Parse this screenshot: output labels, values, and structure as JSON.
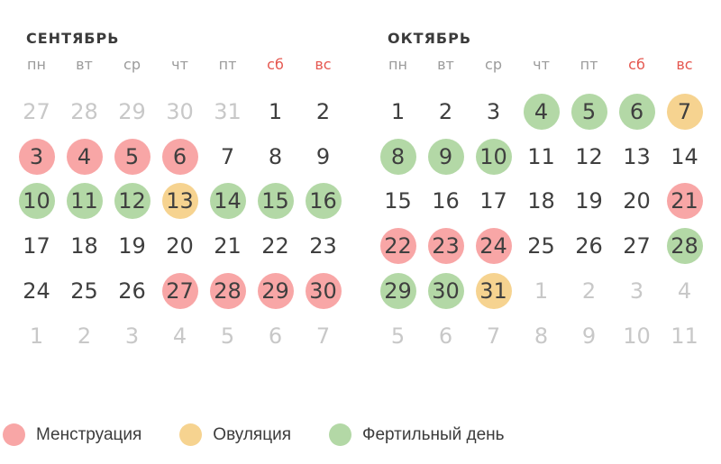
{
  "calendar": {
    "weekdays": [
      {
        "label": "пн",
        "weekend": false
      },
      {
        "label": "вт",
        "weekend": false
      },
      {
        "label": "ср",
        "weekend": false
      },
      {
        "label": "чт",
        "weekend": false
      },
      {
        "label": "пт",
        "weekend": false
      },
      {
        "label": "сб",
        "weekend": true
      },
      {
        "label": "вс",
        "weekend": true
      }
    ],
    "months": [
      {
        "title": "СЕНТЯБРЬ",
        "days": [
          {
            "d": 27,
            "out": true
          },
          {
            "d": 28,
            "out": true
          },
          {
            "d": 29,
            "out": true
          },
          {
            "d": 30,
            "out": true
          },
          {
            "d": 31,
            "out": true
          },
          {
            "d": 1
          },
          {
            "d": 2
          },
          {
            "d": 3,
            "mark": "menstruation"
          },
          {
            "d": 4,
            "mark": "menstruation"
          },
          {
            "d": 5,
            "mark": "menstruation"
          },
          {
            "d": 6,
            "mark": "menstruation"
          },
          {
            "d": 7
          },
          {
            "d": 8
          },
          {
            "d": 9
          },
          {
            "d": 10,
            "mark": "fertile"
          },
          {
            "d": 11,
            "mark": "fertile"
          },
          {
            "d": 12,
            "mark": "fertile"
          },
          {
            "d": 13,
            "mark": "ovulation"
          },
          {
            "d": 14,
            "mark": "fertile"
          },
          {
            "d": 15,
            "mark": "fertile"
          },
          {
            "d": 16,
            "mark": "fertile"
          },
          {
            "d": 17
          },
          {
            "d": 18
          },
          {
            "d": 19
          },
          {
            "d": 20
          },
          {
            "d": 21
          },
          {
            "d": 22
          },
          {
            "d": 23
          },
          {
            "d": 24
          },
          {
            "d": 25
          },
          {
            "d": 26
          },
          {
            "d": 27,
            "mark": "menstruation"
          },
          {
            "d": 28,
            "mark": "menstruation"
          },
          {
            "d": 29,
            "mark": "menstruation"
          },
          {
            "d": 30,
            "mark": "menstruation"
          },
          {
            "d": 1,
            "out": true
          },
          {
            "d": 2,
            "out": true
          },
          {
            "d": 3,
            "out": true
          },
          {
            "d": 4,
            "out": true
          },
          {
            "d": 5,
            "out": true
          },
          {
            "d": 6,
            "out": true
          },
          {
            "d": 7,
            "out": true
          }
        ]
      },
      {
        "title": "ОКТЯБРЬ",
        "days": [
          {
            "d": 1
          },
          {
            "d": 2
          },
          {
            "d": 3
          },
          {
            "d": 4,
            "mark": "fertile"
          },
          {
            "d": 5,
            "mark": "fertile"
          },
          {
            "d": 6,
            "mark": "fertile"
          },
          {
            "d": 7,
            "mark": "ovulation"
          },
          {
            "d": 8,
            "mark": "fertile"
          },
          {
            "d": 9,
            "mark": "fertile"
          },
          {
            "d": 10,
            "mark": "fertile"
          },
          {
            "d": 11
          },
          {
            "d": 12
          },
          {
            "d": 13
          },
          {
            "d": 14
          },
          {
            "d": 15
          },
          {
            "d": 16
          },
          {
            "d": 17
          },
          {
            "d": 18
          },
          {
            "d": 19
          },
          {
            "d": 20
          },
          {
            "d": 21,
            "mark": "menstruation"
          },
          {
            "d": 22,
            "mark": "menstruation"
          },
          {
            "d": 23,
            "mark": "menstruation"
          },
          {
            "d": 24,
            "mark": "menstruation"
          },
          {
            "d": 25
          },
          {
            "d": 26
          },
          {
            "d": 27
          },
          {
            "d": 28,
            "mark": "fertile"
          },
          {
            "d": 29,
            "mark": "fertile"
          },
          {
            "d": 30,
            "mark": "fertile"
          },
          {
            "d": 31,
            "mark": "ovulation"
          },
          {
            "d": 1,
            "out": true
          },
          {
            "d": 2,
            "out": true
          },
          {
            "d": 3,
            "out": true
          },
          {
            "d": 4,
            "out": true
          },
          {
            "d": 5,
            "out": true
          },
          {
            "d": 6,
            "out": true
          },
          {
            "d": 7,
            "out": true
          },
          {
            "d": 8,
            "out": true
          },
          {
            "d": 9,
            "out": true
          },
          {
            "d": 10,
            "out": true
          },
          {
            "d": 11,
            "out": true
          }
        ]
      }
    ]
  },
  "legend": {
    "items": [
      {
        "key": "menstruation",
        "label": "Менструация"
      },
      {
        "key": "ovulation",
        "label": "Овуляция"
      },
      {
        "key": "fertile",
        "label": "Фертильный день"
      }
    ]
  },
  "colors": {
    "menstruation": "#f8a6a6",
    "ovulation": "#f6d390",
    "fertile": "#b3d8a6",
    "weekend_header": "#e5574f",
    "title_text": "#3b3b3b",
    "weekday_text": "#9b9b9b",
    "day_text": "#3f3f3f",
    "muted_text": "#c8c8c8"
  }
}
